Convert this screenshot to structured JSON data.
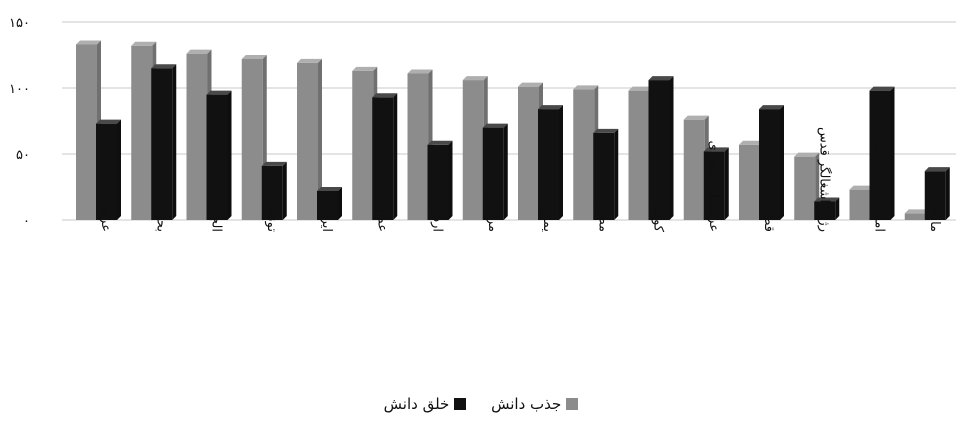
{
  "chart_data": {
    "type": "bar",
    "categories": [
      "عراق",
      "بحرین",
      "الجزایر",
      "تونس",
      "ایران",
      "عمان",
      "اردن",
      "مراکش",
      "یمن",
      "مصر",
      "کویت",
      "عربستان سعودی",
      "قطر",
      "رژیم اشغالگر قدس",
      "امارات متحده عربی",
      "مالت"
    ],
    "series": [
      {
        "name": "جذب دانش",
        "color": "#8c8c8c",
        "values": [
          133,
          132,
          126,
          122,
          119,
          113,
          111,
          106,
          101,
          99,
          98,
          76,
          57,
          48,
          23,
          5
        ]
      },
      {
        "name": "خلق دانش",
        "color": "#111111",
        "values": [
          73,
          115,
          95,
          41,
          22,
          93,
          57,
          70,
          84,
          66,
          106,
          52,
          84,
          14,
          98,
          37
        ]
      }
    ],
    "y_ticks": [
      "۰",
      "۵۰",
      "۱۰۰",
      "۱۵۰"
    ],
    "ylim": [
      0,
      150
    ],
    "grid": true,
    "legend_position": "bottom"
  }
}
